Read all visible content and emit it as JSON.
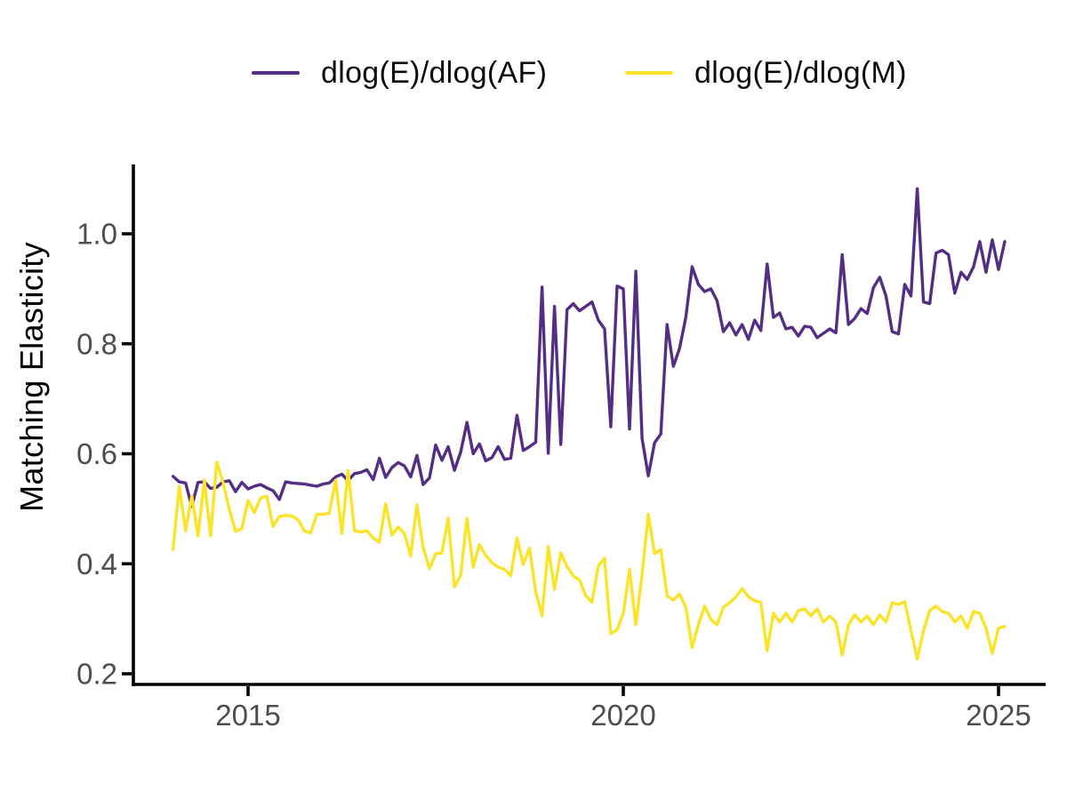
{
  "chart_data": {
    "type": "line",
    "title": "",
    "xlabel": "",
    "ylabel": "Matching Elasticity",
    "legend_position": "top-center",
    "grid": false,
    "background": "#ffffff",
    "axis_color": "#000000",
    "tick_label_color": "#4d4d4d",
    "x_start": 2014.0,
    "x_step": 0.0833333,
    "xlim": [
      2013.8,
      2025.4
    ],
    "ylim": [
      0.18,
      1.12
    ],
    "x_ticks": [
      2015,
      2020,
      2025
    ],
    "x_tick_labels": [
      "2015",
      "2020",
      "2025"
    ],
    "y_ticks": [
      0.2,
      0.4,
      0.6,
      0.8,
      1.0
    ],
    "y_tick_labels": [
      "0.2",
      "0.4",
      "0.6",
      "0.8",
      "1.0"
    ],
    "series": [
      {
        "name": "dlog(E)/dlog(AF)",
        "color": "#542d85",
        "values": [
          0.559,
          0.549,
          0.547,
          0.504,
          0.548,
          0.549,
          0.537,
          0.539,
          0.549,
          0.551,
          0.531,
          0.548,
          0.536,
          0.541,
          0.544,
          0.538,
          0.533,
          0.517,
          0.549,
          0.547,
          0.546,
          0.545,
          0.543,
          0.541,
          0.545,
          0.547,
          0.558,
          0.563,
          0.551,
          0.564,
          0.566,
          0.571,
          0.553,
          0.592,
          0.557,
          0.575,
          0.584,
          0.578,
          0.558,
          0.597,
          0.544,
          0.556,
          0.616,
          0.588,
          0.613,
          0.57,
          0.603,
          0.657,
          0.6,
          0.618,
          0.587,
          0.593,
          0.613,
          0.59,
          0.592,
          0.67,
          0.606,
          0.613,
          0.621,
          0.903,
          0.601,
          0.868,
          0.617,
          0.862,
          0.873,
          0.86,
          0.868,
          0.876,
          0.843,
          0.827,
          0.649,
          0.905,
          0.9,
          0.645,
          0.932,
          0.628,
          0.56,
          0.62,
          0.636,
          0.835,
          0.759,
          0.792,
          0.848,
          0.94,
          0.908,
          0.895,
          0.9,
          0.878,
          0.822,
          0.838,
          0.816,
          0.835,
          0.808,
          0.843,
          0.824,
          0.945,
          0.848,
          0.856,
          0.827,
          0.83,
          0.814,
          0.832,
          0.83,
          0.811,
          0.819,
          0.827,
          0.82,
          0.962,
          0.835,
          0.846,
          0.864,
          0.855,
          0.902,
          0.921,
          0.887,
          0.822,
          0.818,
          0.908,
          0.887,
          1.082,
          0.876,
          0.873,
          0.965,
          0.97,
          0.962,
          0.892,
          0.93,
          0.917,
          0.94,
          0.986,
          0.93,
          0.989,
          0.935,
          0.986
        ]
      },
      {
        "name": "dlog(E)/dlog(M)",
        "color": "#fbe32a",
        "values": [
          0.426,
          0.541,
          0.46,
          0.523,
          0.451,
          0.552,
          0.451,
          0.585,
          0.548,
          0.499,
          0.459,
          0.464,
          0.515,
          0.493,
          0.52,
          0.523,
          0.468,
          0.486,
          0.488,
          0.487,
          0.48,
          0.46,
          0.456,
          0.49,
          0.49,
          0.492,
          0.552,
          0.455,
          0.57,
          0.46,
          0.458,
          0.46,
          0.447,
          0.439,
          0.509,
          0.452,
          0.467,
          0.455,
          0.414,
          0.507,
          0.43,
          0.391,
          0.418,
          0.42,
          0.483,
          0.358,
          0.379,
          0.483,
          0.394,
          0.435,
          0.415,
          0.402,
          0.394,
          0.39,
          0.378,
          0.447,
          0.399,
          0.428,
          0.35,
          0.305,
          0.431,
          0.353,
          0.42,
          0.395,
          0.378,
          0.37,
          0.342,
          0.33,
          0.396,
          0.41,
          0.273,
          0.28,
          0.31,
          0.39,
          0.289,
          0.38,
          0.49,
          0.418,
          0.426,
          0.342,
          0.334,
          0.345,
          0.321,
          0.248,
          0.289,
          0.323,
          0.299,
          0.289,
          0.321,
          0.329,
          0.34,
          0.355,
          0.34,
          0.333,
          0.33,
          0.242,
          0.31,
          0.294,
          0.31,
          0.294,
          0.315,
          0.318,
          0.305,
          0.318,
          0.294,
          0.305,
          0.294,
          0.234,
          0.289,
          0.307,
          0.294,
          0.305,
          0.289,
          0.307,
          0.294,
          0.329,
          0.326,
          0.331,
          0.278,
          0.227,
          0.278,
          0.315,
          0.323,
          0.313,
          0.31,
          0.294,
          0.305,
          0.283,
          0.313,
          0.31,
          0.283,
          0.237,
          0.283,
          0.286
        ]
      }
    ]
  }
}
